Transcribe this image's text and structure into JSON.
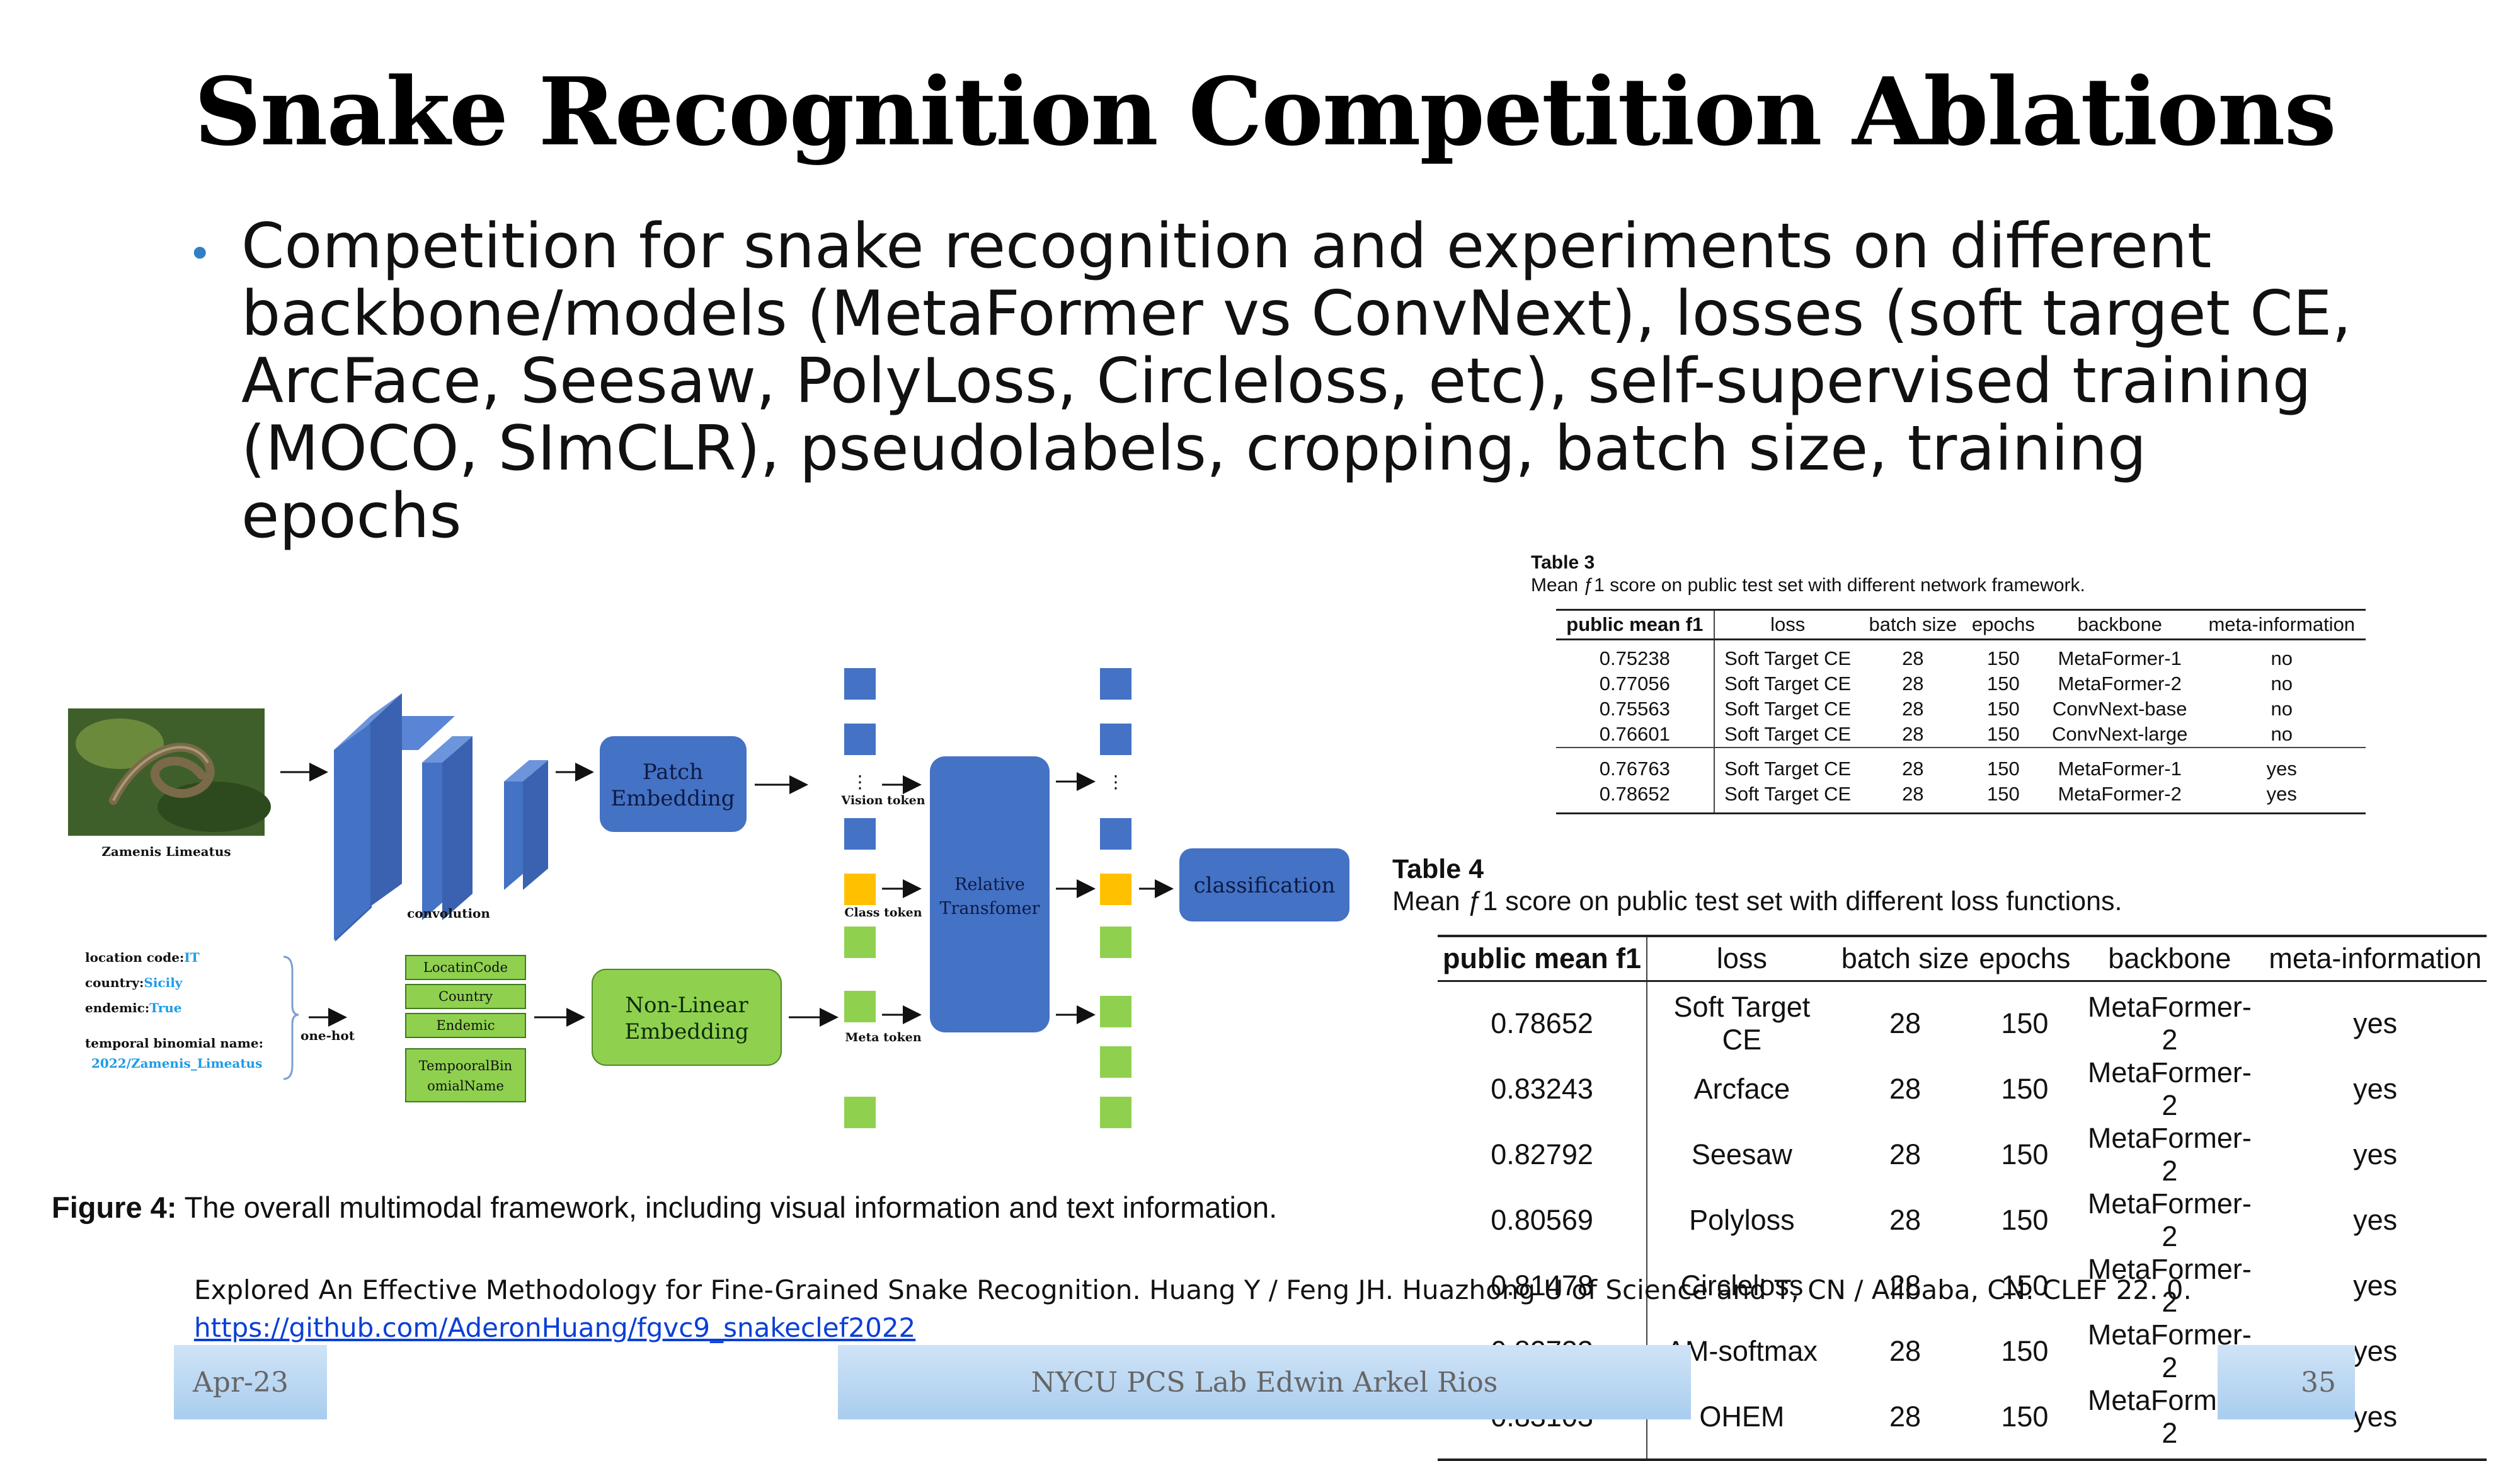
{
  "slide": {
    "title": "Snake Recognition Competition Ablations",
    "bullet": "Competition for snake recognition and experiments on different backbone/models (MetaFormer vs ConvNext), losses (soft target CE, ArcFace, Seesaw, PolyLoss, Circleloss, etc), self-supervised training (MOCO, SImCLR), pseudolabels, cropping, batch size, training epochs",
    "reference": "Explored An Effective Methodology for Fine-Grained Snake Recognition. Huang Y / Feng JH. Huazhong U of Science and T, CN / Alibaba, CN. CLEF 22. 0.",
    "link": "https://github.com/AderonHuang/fgvc9_snakeclef2022"
  },
  "table3": {
    "label": "Table 3",
    "caption": "Mean ƒ1 score on public test set with different network framework.",
    "headers": [
      "public mean f1",
      "loss",
      "batch size",
      "epochs",
      "backbone",
      "meta-information"
    ],
    "rows": [
      [
        "0.75238",
        "Soft Target CE",
        "28",
        "150",
        "MetaFormer-1",
        "no"
      ],
      [
        "0.77056",
        "Soft Target CE",
        "28",
        "150",
        "MetaFormer-2",
        "no"
      ],
      [
        "0.75563",
        "Soft Target CE",
        "28",
        "150",
        "ConvNext-base",
        "no"
      ],
      [
        "0.76601",
        "Soft Target CE",
        "28",
        "150",
        "ConvNext-large",
        "no"
      ],
      [
        "0.76763",
        "Soft Target CE",
        "28",
        "150",
        "MetaFormer-1",
        "yes"
      ],
      [
        "0.78652",
        "Soft Target CE",
        "28",
        "150",
        "MetaFormer-2",
        "yes"
      ]
    ]
  },
  "table4": {
    "label": "Table 4",
    "caption": "Mean ƒ1 score on public test set with different loss functions.",
    "headers": [
      "public mean f1",
      "loss",
      "batch size",
      "epochs",
      "backbone",
      "meta-information"
    ],
    "rows": [
      [
        "0.78652",
        "Soft Target CE",
        "28",
        "150",
        "MetaFormer-2",
        "yes"
      ],
      [
        "0.83243",
        "Arcface",
        "28",
        "150",
        "MetaFormer-2",
        "yes"
      ],
      [
        "0.82792",
        "Seesaw",
        "28",
        "150",
        "MetaFormer-2",
        "yes"
      ],
      [
        "0.80569",
        "Polyloss",
        "28",
        "150",
        "MetaFormer-2",
        "yes"
      ],
      [
        "0.81478",
        "Circleloss",
        "28",
        "150",
        "MetaFormer-2",
        "yes"
      ],
      [
        "0.82733",
        "AM-softmax",
        "28",
        "150",
        "MetaFormer-2",
        "yes"
      ],
      [
        "0.83103",
        "OHEM",
        "28",
        "150",
        "MetaFormer-2",
        "yes"
      ]
    ]
  },
  "figure": {
    "caption_label": "Figure 4:",
    "caption_text": " The overall multimodal framework, including visual information and text information.",
    "image_label": "Zamenis Limeatus",
    "convolution": "convolution",
    "patch_embedding": [
      "Patch",
      "Embedding"
    ],
    "vision_token": "Vision token",
    "class_token": "Class token",
    "meta_token": "Meta token",
    "transformer": [
      "Relative",
      "Transfomer"
    ],
    "classification": "classification",
    "nonlinear": [
      "Non-Linear",
      "Embedding"
    ],
    "one_hot": "one-hot",
    "meta_boxes": [
      "LocatinCode",
      "Country",
      "Endemic",
      "TempooralBin",
      "omialName"
    ],
    "meta_keys": [
      "location code:",
      "country:",
      "endemic:",
      "temporal binomial name:"
    ],
    "meta_vals": [
      "IT",
      "Sicily",
      "True",
      "2022/Zamenis_Limeatus"
    ],
    "dots": "⋮"
  },
  "footer": {
    "date": "Apr-23",
    "center": "NYCU PCS Lab Edwin Arkel Rios",
    "page": "35"
  },
  "colors": {
    "blue": "#4472c4",
    "green": "#8fd14f",
    "yellow": "#ffc000",
    "link": "#0b3fd6",
    "meta_value": "#1e9be6"
  }
}
